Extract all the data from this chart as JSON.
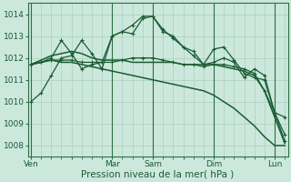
{
  "xlabel": "Pression niveau de la mer( hPa )",
  "bg_color": "#cce8dd",
  "grid_color": "#aacfbf",
  "line_color": "#1a5c32",
  "vline_color": "#2d6e45",
  "ylim": [
    1007.5,
    1014.5
  ],
  "yticks": [
    1008,
    1009,
    1010,
    1011,
    1012,
    1013,
    1014
  ],
  "day_labels": [
    "Ven",
    "",
    "Mar",
    "Sam",
    "",
    "Dim",
    "",
    "Lun"
  ],
  "day_positions": [
    0,
    4,
    8,
    12,
    15,
    18,
    21,
    24
  ],
  "vline_positions": [
    0,
    8,
    12,
    18,
    24
  ],
  "xlim": [
    -0.3,
    25.3
  ],
  "total_points": 26,
  "lines": [
    {
      "y": [
        1011.7,
        1011.8,
        1012.0,
        1012.8,
        1012.2,
        1011.5,
        1011.7,
        1011.8,
        1013.0,
        1013.2,
        1013.1,
        1013.8,
        1013.9,
        1013.2,
        1013.0,
        1012.5,
        1012.3,
        1011.7,
        1012.4,
        1012.5,
        1011.9,
        1011.3,
        1011.1,
        1011.0,
        1009.5,
        1009.3
      ],
      "marker": true,
      "linewidth": 0.9
    },
    {
      "y": [
        1011.7,
        1011.8,
        1011.9,
        1011.9,
        1011.9,
        1011.8,
        1011.8,
        1011.8,
        1011.8,
        1011.9,
        1012.0,
        1012.0,
        1012.0,
        1011.9,
        1011.8,
        1011.7,
        1011.7,
        1011.6,
        1011.7,
        1011.7,
        1011.6,
        1011.5,
        1011.3,
        1010.5,
        1009.5,
        1008.5
      ],
      "marker": true,
      "linewidth": 0.9
    },
    {
      "y": [
        1011.7,
        1011.8,
        1011.9,
        1011.8,
        1011.8,
        1011.7,
        1011.6,
        1011.5,
        1011.4,
        1011.3,
        1011.2,
        1011.1,
        1011.0,
        1010.9,
        1010.8,
        1010.7,
        1010.6,
        1010.5,
        1010.3,
        1010.0,
        1009.7,
        1009.3,
        1008.9,
        1008.4,
        1008.0,
        1008.0
      ],
      "marker": false,
      "linewidth": 1.1
    },
    {
      "y": [
        1011.7,
        1011.9,
        1012.1,
        1012.2,
        1012.3,
        1012.2,
        1012.0,
        1011.9,
        1011.9,
        1011.9,
        1011.8,
        1011.8,
        1011.8,
        1011.8,
        1011.8,
        1011.7,
        1011.7,
        1011.7,
        1011.7,
        1011.6,
        1011.5,
        1011.4,
        1011.2,
        1010.5,
        1009.3,
        1008.1
      ],
      "marker": false,
      "linewidth": 1.1
    },
    {
      "y": [
        1010.0,
        1010.4,
        1011.2,
        1012.0,
        1012.1,
        1012.8,
        1012.2,
        1011.5,
        1013.0,
        1013.2,
        1013.5,
        1013.9,
        1013.9,
        1013.3,
        1012.9,
        1012.5,
        1012.1,
        1011.7,
        1011.8,
        1012.0,
        1011.8,
        1011.1,
        1011.5,
        1011.2,
        1009.5,
        1008.2
      ],
      "marker": true,
      "linewidth": 0.9
    }
  ]
}
